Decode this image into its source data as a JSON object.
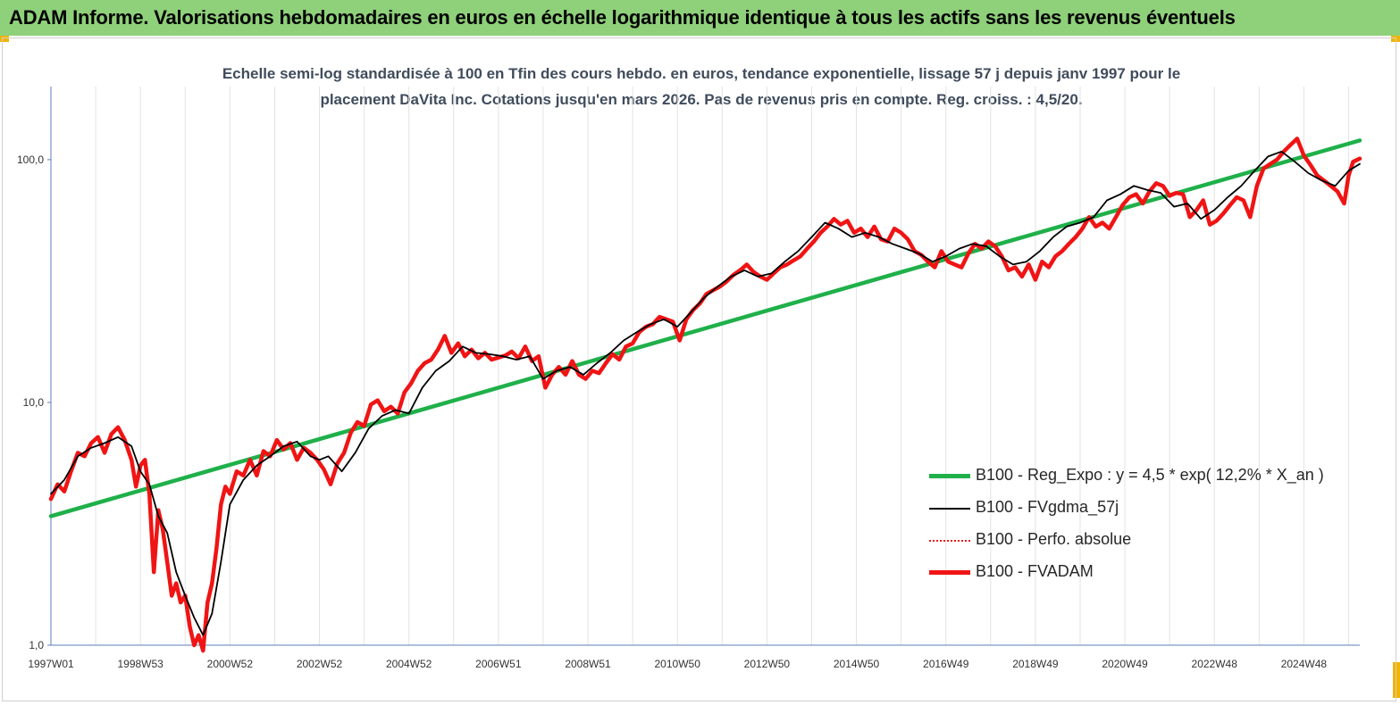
{
  "banner": {
    "title": "ADAM Informe. Valorisations hebdomadaires en euros en échelle logarithmique identique à tous les actifs sans les revenus éventuels",
    "color": "#8fd07a"
  },
  "chart_title": {
    "line1": "Echelle semi-log standardisée à 100 en Tfin des cours hebdo. en euros, tendance exponentielle, lissage 57 j depuis janv 1997 pour le",
    "line2": "placement DaVita Inc. Cotations jusqu'en mars 2026. Pas de revenus pris en compte. Reg. croiss. : 4,5/20."
  },
  "chart_data": {
    "type": "line",
    "y_scale": "log",
    "ylim": [
      1,
      200
    ],
    "xlim": [
      1997.0,
      2026.25
    ],
    "y_ticks": [
      {
        "value": 1,
        "label": "1,0"
      },
      {
        "value": 10,
        "label": "10,0"
      },
      {
        "value": 100,
        "label": "100,0"
      }
    ],
    "x_ticks": [
      {
        "value": 1997.0,
        "label": "1997W01"
      },
      {
        "value": 1999.0,
        "label": "1998W53"
      },
      {
        "value": 2001.0,
        "label": "2000W52"
      },
      {
        "value": 2003.0,
        "label": "2002W52"
      },
      {
        "value": 2005.0,
        "label": "2004W52"
      },
      {
        "value": 2007.0,
        "label": "2006W51"
      },
      {
        "value": 2009.0,
        "label": "2008W51"
      },
      {
        "value": 2011.0,
        "label": "2010W50"
      },
      {
        "value": 2013.0,
        "label": "2012W50"
      },
      {
        "value": 2015.0,
        "label": "2014W50"
      },
      {
        "value": 2017.0,
        "label": "2016W49"
      },
      {
        "value": 2019.0,
        "label": "2018W49"
      },
      {
        "value": 2021.0,
        "label": "2020W49"
      },
      {
        "value": 2023.0,
        "label": "2022W48"
      },
      {
        "value": 2025.0,
        "label": "2024W48"
      }
    ],
    "grid": "vertical",
    "legend_position": "bottom-right",
    "series": [
      {
        "name": "B100 - Reg_Expo : y = 4,5 * exp( 12,2% *  X_an )",
        "color": "#1fb04a",
        "style": "thick",
        "x": [
          1997.0,
          2026.25
        ],
        "y": [
          3.4,
          120
        ]
      },
      {
        "name": "B100 - FVgdma_57j",
        "color": "#000000",
        "style": "thin",
        "x": [
          1997.0,
          1997.3,
          1997.6,
          1997.9,
          1998.2,
          1998.5,
          1998.8,
          1999.0,
          1999.2,
          1999.4,
          1999.6,
          1999.8,
          2000.0,
          2000.2,
          2000.4,
          2000.6,
          2000.8,
          2001.0,
          2001.3,
          2001.6,
          2001.9,
          2002.2,
          2002.5,
          2002.8,
          2003.0,
          2003.2,
          2003.5,
          2003.8,
          2004.1,
          2004.4,
          2004.7,
          2005.0,
          2005.3,
          2005.6,
          2005.9,
          2006.2,
          2006.5,
          2006.8,
          2007.1,
          2007.4,
          2007.7,
          2008.0,
          2008.3,
          2008.6,
          2008.9,
          2009.2,
          2009.5,
          2009.8,
          2010.1,
          2010.4,
          2010.7,
          2011.0,
          2011.3,
          2011.6,
          2011.9,
          2012.2,
          2012.5,
          2012.8,
          2013.1,
          2013.4,
          2013.7,
          2014.0,
          2014.3,
          2014.6,
          2014.9,
          2015.2,
          2015.5,
          2015.8,
          2016.1,
          2016.4,
          2016.7,
          2017.0,
          2017.3,
          2017.6,
          2017.9,
          2018.2,
          2018.5,
          2018.8,
          2019.1,
          2019.4,
          2019.7,
          2020.0,
          2020.3,
          2020.6,
          2020.9,
          2021.2,
          2021.5,
          2021.8,
          2022.1,
          2022.4,
          2022.7,
          2023.0,
          2023.3,
          2023.6,
          2023.9,
          2024.2,
          2024.5,
          2024.8,
          2025.1,
          2025.4,
          2025.7,
          2026.0,
          2026.25
        ],
        "y": [
          4.2,
          4.8,
          6.0,
          6.5,
          6.8,
          7.2,
          6.6,
          5.2,
          4.6,
          3.4,
          2.9,
          2.0,
          1.6,
          1.3,
          1.1,
          1.35,
          2.2,
          3.8,
          4.8,
          5.5,
          6.0,
          6.6,
          6.9,
          6.0,
          5.8,
          6.0,
          5.2,
          6.2,
          7.8,
          8.8,
          9.3,
          9.0,
          11.5,
          13.5,
          14.8,
          17.0,
          16.0,
          15.8,
          15.5,
          15.0,
          15.5,
          12.5,
          13.5,
          14.0,
          13.0,
          14.5,
          16.0,
          18.0,
          19.5,
          21.0,
          22.0,
          20.5,
          23.5,
          27.0,
          30.0,
          33.0,
          35.0,
          33.0,
          34.0,
          38.0,
          42.0,
          48.0,
          55.0,
          52.0,
          48.0,
          50.0,
          48.0,
          45.0,
          43.0,
          41.0,
          38.0,
          40.0,
          43.0,
          45.0,
          44.0,
          40.0,
          37.0,
          38.0,
          42.0,
          48.0,
          53.0,
          55.0,
          58.0,
          68.0,
          72.0,
          78.0,
          75.0,
          73.0,
          64.0,
          66.0,
          57.0,
          62.0,
          70.0,
          78.0,
          90.0,
          103.0,
          108.0,
          98.0,
          88.0,
          82.0,
          78.0,
          90.0,
          96.0
        ]
      },
      {
        "name": "B100 - Perfo. absolue",
        "color": "#e8191c",
        "style": "dotted",
        "x": [],
        "y": []
      },
      {
        "name": "B100 - FVADAM",
        "color": "#f01414",
        "style": "thick",
        "x": [
          1997.0,
          1997.15,
          1997.3,
          1997.45,
          1997.6,
          1997.75,
          1997.9,
          1998.05,
          1998.2,
          1998.35,
          1998.5,
          1998.65,
          1998.8,
          1998.9,
          1999.0,
          1999.1,
          1999.2,
          1999.3,
          1999.4,
          1999.5,
          1999.6,
          1999.7,
          1999.8,
          1999.9,
          2000.0,
          2000.1,
          2000.2,
          2000.3,
          2000.4,
          2000.5,
          2000.6,
          2000.7,
          2000.8,
          2000.9,
          2001.0,
          2001.15,
          2001.3,
          2001.45,
          2001.6,
          2001.75,
          2001.9,
          2002.05,
          2002.2,
          2002.35,
          2002.5,
          2002.65,
          2002.8,
          2002.95,
          2003.1,
          2003.25,
          2003.4,
          2003.55,
          2003.7,
          2003.85,
          2004.0,
          2004.15,
          2004.3,
          2004.45,
          2004.6,
          2004.75,
          2004.9,
          2005.05,
          2005.2,
          2005.35,
          2005.5,
          2005.65,
          2005.8,
          2005.95,
          2006.1,
          2006.25,
          2006.4,
          2006.55,
          2006.7,
          2006.85,
          2007.0,
          2007.15,
          2007.3,
          2007.45,
          2007.6,
          2007.75,
          2007.9,
          2008.05,
          2008.2,
          2008.35,
          2008.5,
          2008.65,
          2008.8,
          2008.95,
          2009.1,
          2009.25,
          2009.4,
          2009.55,
          2009.7,
          2009.85,
          2010.0,
          2010.15,
          2010.3,
          2010.45,
          2010.6,
          2010.75,
          2010.9,
          2011.05,
          2011.2,
          2011.35,
          2011.5,
          2011.65,
          2011.8,
          2011.95,
          2012.1,
          2012.25,
          2012.4,
          2012.55,
          2012.7,
          2012.85,
          2013.0,
          2013.15,
          2013.3,
          2013.45,
          2013.6,
          2013.75,
          2013.9,
          2014.05,
          2014.2,
          2014.35,
          2014.5,
          2014.65,
          2014.8,
          2014.95,
          2015.1,
          2015.25,
          2015.4,
          2015.55,
          2015.7,
          2015.85,
          2016.0,
          2016.15,
          2016.3,
          2016.45,
          2016.6,
          2016.75,
          2016.9,
          2017.05,
          2017.2,
          2017.35,
          2017.5,
          2017.65,
          2017.8,
          2017.95,
          2018.1,
          2018.25,
          2018.4,
          2018.55,
          2018.7,
          2018.85,
          2019.0,
          2019.15,
          2019.3,
          2019.45,
          2019.6,
          2019.75,
          2019.9,
          2020.05,
          2020.2,
          2020.35,
          2020.5,
          2020.65,
          2020.8,
          2020.95,
          2021.1,
          2021.25,
          2021.4,
          2021.55,
          2021.7,
          2021.85,
          2022.0,
          2022.15,
          2022.3,
          2022.45,
          2022.6,
          2022.75,
          2022.9,
          2023.05,
          2023.2,
          2023.35,
          2023.5,
          2023.65,
          2023.8,
          2023.95,
          2024.1,
          2024.25,
          2024.4,
          2024.55,
          2024.7,
          2024.85,
          2025.0,
          2025.15,
          2025.3,
          2025.45,
          2025.6,
          2025.75,
          2025.9,
          2026.0,
          2026.1,
          2026.25
        ],
        "y": [
          4.0,
          4.6,
          4.3,
          5.2,
          6.2,
          6.0,
          6.8,
          7.2,
          6.2,
          7.4,
          7.9,
          7.0,
          5.8,
          4.5,
          5.5,
          5.8,
          4.2,
          2.0,
          3.6,
          3.0,
          2.2,
          1.6,
          1.8,
          1.5,
          1.6,
          1.2,
          1.0,
          1.1,
          0.95,
          1.5,
          1.8,
          2.5,
          3.8,
          4.5,
          4.2,
          5.2,
          5.0,
          5.8,
          5.0,
          6.3,
          6.0,
          7.0,
          6.4,
          6.8,
          5.8,
          6.5,
          6.2,
          5.8,
          5.3,
          4.6,
          5.6,
          6.2,
          7.5,
          8.3,
          8.0,
          9.8,
          10.2,
          9.2,
          9.6,
          9.0,
          11.0,
          12.0,
          13.5,
          14.5,
          15.0,
          16.5,
          18.8,
          16.0,
          17.5,
          15.5,
          16.5,
          15.2,
          16.0,
          15.0,
          15.3,
          15.6,
          16.2,
          15.2,
          17.0,
          14.8,
          15.5,
          11.5,
          13.0,
          14.0,
          13.0,
          14.8,
          13.0,
          12.5,
          13.5,
          13.2,
          14.5,
          15.8,
          15.0,
          17.0,
          17.5,
          19.5,
          20.5,
          21.0,
          22.5,
          22.0,
          21.5,
          18.0,
          22.0,
          24.0,
          25.5,
          28.0,
          29.0,
          30.0,
          31.5,
          33.5,
          35.0,
          37.0,
          34.5,
          33.0,
          32.0,
          34.0,
          36.0,
          37.0,
          38.5,
          40.0,
          43.0,
          46.0,
          50.0,
          53.0,
          57.0,
          54.0,
          56.0,
          50.0,
          52.0,
          48.0,
          53.0,
          47.0,
          46.0,
          52.0,
          50.0,
          47.0,
          42.0,
          40.5,
          38.0,
          36.0,
          42.0,
          38.0,
          37.0,
          36.0,
          41.0,
          45.0,
          43.0,
          46.0,
          44.0,
          40.0,
          35.0,
          36.0,
          33.0,
          37.0,
          32.0,
          38.0,
          36.0,
          40.0,
          42.0,
          45.0,
          48.0,
          52.0,
          58.0,
          53.0,
          55.0,
          52.0,
          58.0,
          65.0,
          70.0,
          72.0,
          66.0,
          74.0,
          80.0,
          78.0,
          71.0,
          73.0,
          72.0,
          58.0,
          62.0,
          68.0,
          54.0,
          56.0,
          60.0,
          65.0,
          70.0,
          68.0,
          58.0,
          78.0,
          92.0,
          96.0,
          100.0,
          108.0,
          115.0,
          122.0,
          104.0,
          95.0,
          86.0,
          82.0,
          78.0,
          74.0,
          66.0,
          86.0,
          98.0,
          101.0
        ]
      }
    ]
  }
}
